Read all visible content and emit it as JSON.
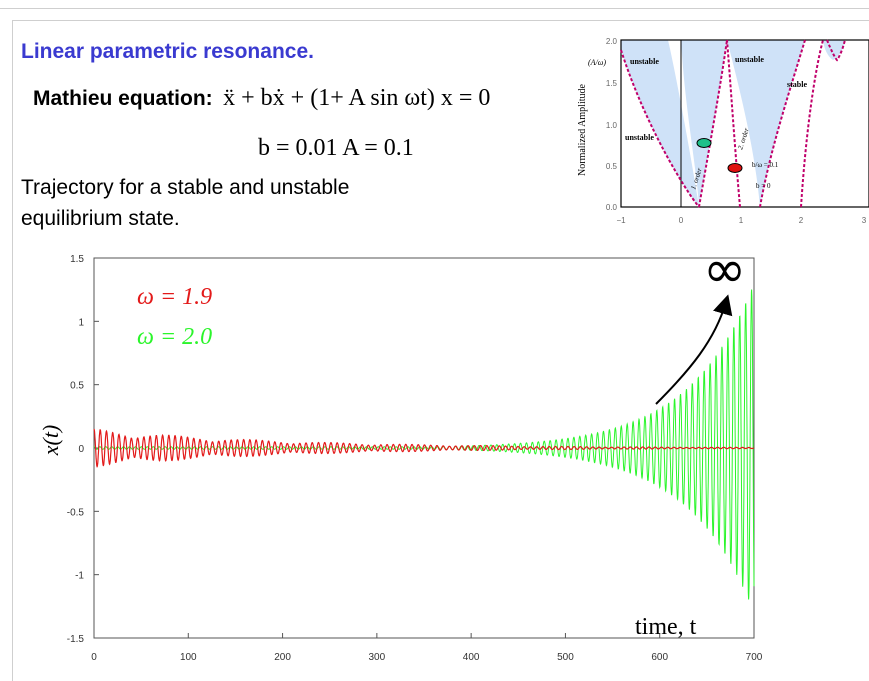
{
  "slide": {
    "title": "Linear parametric  resonance.",
    "equation_label": "Mathieu equation:",
    "equation": "ẍ + bẋ + (1+ A sin ωt) x = 0",
    "params": "b = 0.01    A = 0.1",
    "caption_line1": "Trajectory for a stable and unstable",
    "caption_line2": "equilibrium state."
  },
  "stability_chart": {
    "ylabel": "Normalized Amplitude",
    "y_axis_fraction": "(A/ω)",
    "region_labels": [
      "unstable",
      "unstable",
      "unstable",
      "stable"
    ],
    "curve_labels": [
      "1. order",
      "2. order"
    ],
    "annotation_1": "b/ω = 0.1",
    "annotation_2": "b = 0",
    "y_ticks": [
      "0.0",
      "0.5",
      "1.0",
      "1.5",
      "2.0"
    ],
    "x_ticks": [
      "−1",
      "0",
      "1",
      "2",
      "3"
    ],
    "colors": {
      "region": "#cfe2f8",
      "boundary": "#c0006a",
      "green_marker": "#1fc08a",
      "red_marker": "#e01010"
    }
  },
  "chart_data": {
    "type": "line",
    "xlabel": "time, t",
    "ylabel": "x(t)",
    "xlim": [
      0,
      700
    ],
    "ylim": [
      -1.5,
      1.5
    ],
    "x_ticks": [
      0,
      100,
      200,
      300,
      400,
      500,
      600,
      700
    ],
    "y_ticks": [
      1.5,
      1,
      0.5,
      0,
      -0.5,
      -1,
      -1.5
    ],
    "y_tick_labels": [
      "1.5",
      "1",
      "0.5",
      "0",
      "-0.5",
      "-1",
      "-1.5"
    ],
    "x_tick_labels": [
      "0",
      "100",
      "200",
      "300",
      "400",
      "500",
      "600",
      "700"
    ],
    "series": [
      {
        "name": "ω = 1.9",
        "color": "#e31a1a",
        "freq": 1.9,
        "decay": 0.005,
        "amp0": 0.15,
        "beat_period": 83.8
      },
      {
        "name": "ω = 2.0",
        "color": "#2bf52b",
        "freq": 2.0,
        "amp_start": 0.01,
        "amp_end": 1.3,
        "growth_start": 360
      }
    ],
    "annotation": "∞"
  }
}
